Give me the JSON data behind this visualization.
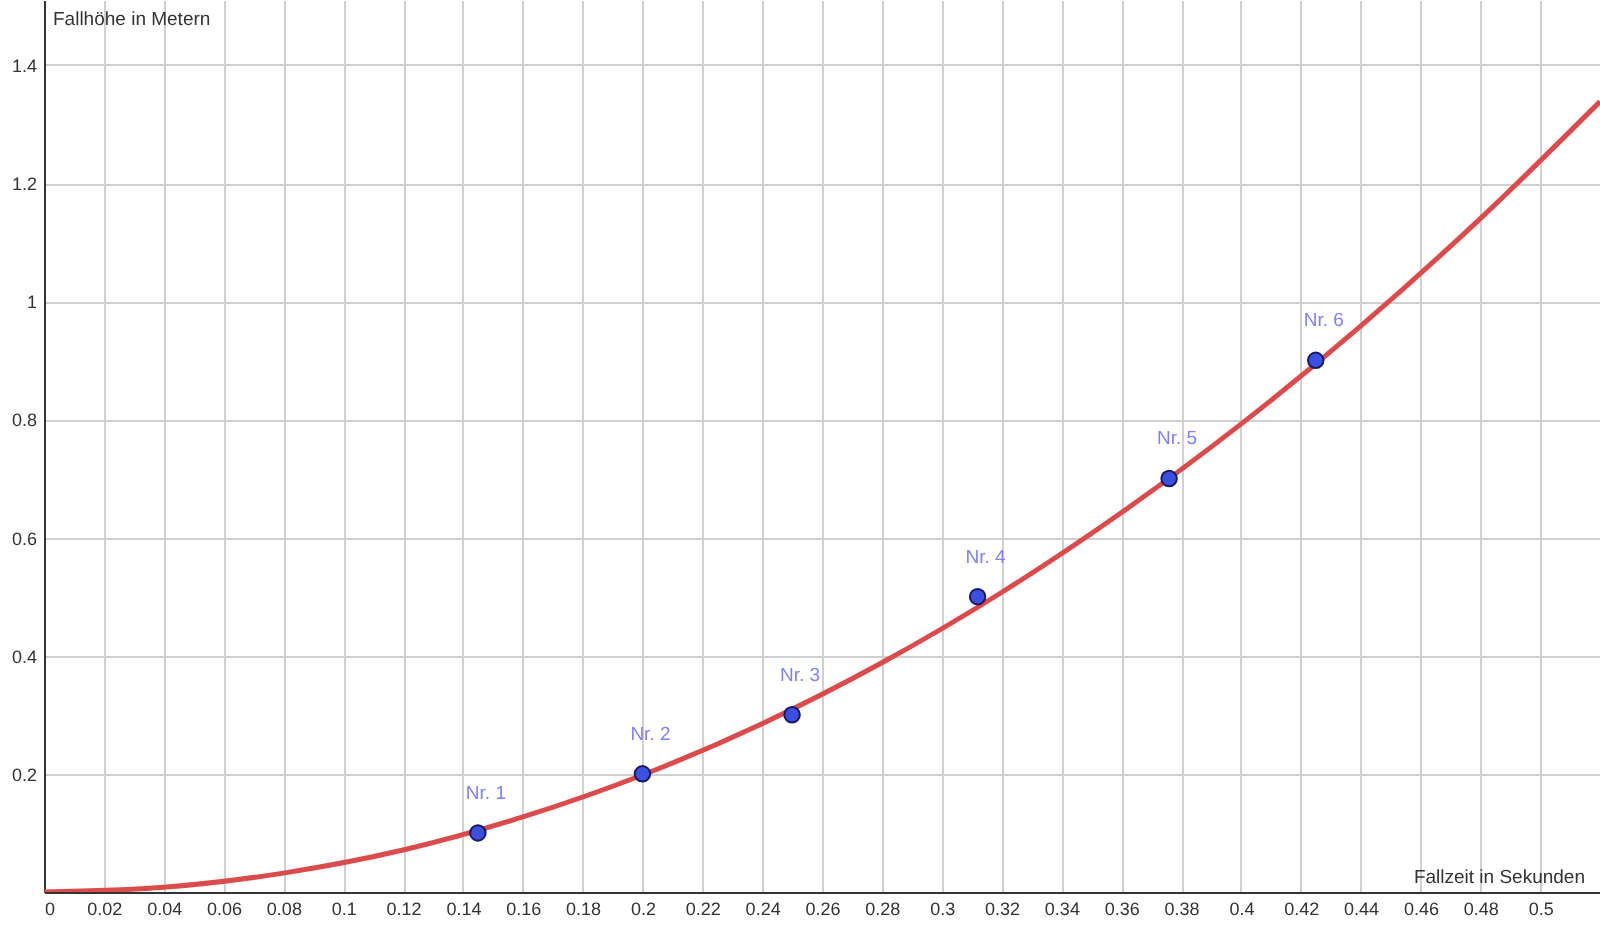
{
  "chart_data": {
    "type": "line",
    "xlabel": "Fallzeit in Sekunden",
    "ylabel": "Fallhöhe in Metern",
    "xlim": [
      0,
      0.52
    ],
    "ylim": [
      0,
      1.51
    ],
    "xticks": [
      0,
      0.02,
      0.04,
      0.06,
      0.08,
      0.1,
      0.12,
      0.14,
      0.16,
      0.18,
      0.2,
      0.22,
      0.24,
      0.26,
      0.28,
      0.3,
      0.32,
      0.34,
      0.36,
      0.38,
      0.4,
      0.42,
      0.44,
      0.46,
      0.48,
      0.5
    ],
    "yticks": [
      0.2,
      0.4,
      0.6,
      0.8,
      1,
      1.2,
      1.4
    ],
    "grid": true,
    "series": [
      {
        "color": "#db4b4b",
        "line_style": "solid",
        "marker": "none",
        "x": [
          0,
          0.04,
          0.08,
          0.12,
          0.16,
          0.2,
          0.24,
          0.28,
          0.32,
          0.36,
          0.4,
          0.44,
          0.48,
          0.52
        ],
        "values": [
          0,
          0.008,
          0.032,
          0.071,
          0.127,
          0.198,
          0.285,
          0.388,
          0.507,
          0.642,
          0.792,
          0.958,
          1.14,
          1.338
        ]
      },
      {
        "type": "scatter",
        "color": "#3b4fe0",
        "marker": "circle",
        "x": [
          0.145,
          0.2,
          0.25,
          0.312,
          0.376,
          0.425
        ],
        "values": [
          0.1,
          0.2,
          0.3,
          0.5,
          0.7,
          0.9
        ]
      }
    ],
    "annotations": [
      {
        "text": "Nr. 1",
        "x": 0.145,
        "y": 0.1
      },
      {
        "text": "Nr. 2",
        "x": 0.2,
        "y": 0.2
      },
      {
        "text": "Nr. 3",
        "x": 0.25,
        "y": 0.3
      },
      {
        "text": "Nr. 4",
        "x": 0.312,
        "y": 0.5
      },
      {
        "text": "Nr. 5",
        "x": 0.376,
        "y": 0.7
      },
      {
        "text": "Nr. 6",
        "x": 0.425,
        "y": 0.9
      }
    ]
  }
}
